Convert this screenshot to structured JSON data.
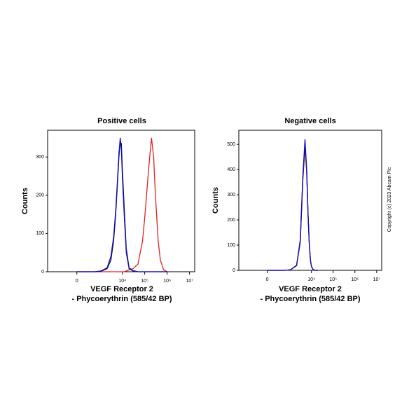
{
  "copyright": "Copyright (c) 2023 Abcam Plc",
  "chart_data": [
    {
      "type": "line",
      "title": "Positive cells",
      "y_label": "Counts",
      "x_label": [
        "VEGF Receptor 2",
        "- Phycoerythrin  (585/42 BP)"
      ],
      "xlim": [
        -1800,
        17000000
      ],
      "ylim": [
        0,
        370
      ],
      "xticks": [
        0,
        {
          "value": 10000,
          "label": "10⁴"
        },
        {
          "value": 100000,
          "label": "10⁵"
        },
        {
          "value": 1000000,
          "label": "10⁶"
        },
        {
          "value": 10000000,
          "label": "10⁷"
        }
      ],
      "yticks": [
        0,
        100,
        200,
        300
      ],
      "x": [
        0,
        500,
        1000,
        2000,
        3000,
        4000,
        5000,
        6000,
        7000,
        8000,
        9000,
        10000,
        12000,
        15000,
        20000,
        30000,
        50000,
        80000,
        100000,
        150000,
        200000,
        250000,
        300000,
        400000,
        500000,
        700000,
        1000000
      ],
      "series": [
        {
          "color": "#e02020",
          "values": [
            0,
            0,
            0,
            0,
            0,
            0,
            0,
            0,
            0,
            0,
            0,
            0,
            0,
            2,
            5,
            8,
            20,
            80,
            140,
            270,
            350,
            300,
            200,
            80,
            30,
            5,
            0
          ]
        },
        {
          "color": "#111111",
          "values": [
            0,
            0,
            1,
            8,
            30,
            80,
            150,
            230,
            300,
            340,
            335,
            270,
            170,
            60,
            10,
            3,
            0,
            0,
            0,
            0,
            0,
            0,
            0,
            0,
            0,
            0,
            0
          ]
        },
        {
          "color": "#1010c8",
          "values": [
            0,
            0,
            2,
            10,
            40,
            90,
            160,
            240,
            310,
            350,
            320,
            250,
            150,
            50,
            8,
            2,
            0,
            0,
            0,
            0,
            0,
            0,
            0,
            0,
            0,
            0,
            0
          ]
        }
      ]
    },
    {
      "type": "line",
      "title": "Negative cells",
      "y_label": "Counts",
      "x_label": [
        "VEGF Receptor 2",
        "- Phycoerythrin  (585/42 BP)"
      ],
      "xlim": [
        -1800,
        17000000
      ],
      "ylim": [
        0,
        556
      ],
      "xticks": [
        0,
        {
          "value": 10000,
          "label": "10⁴"
        },
        {
          "value": 100000,
          "label": "10⁵"
        },
        {
          "value": 1000000,
          "label": "10⁶"
        },
        {
          "value": 10000000,
          "label": "10⁷"
        }
      ],
      "yticks": [
        0,
        100,
        200,
        300,
        400,
        500
      ],
      "x": [
        0,
        500,
        1000,
        2000,
        3000,
        4000,
        5000,
        6000,
        7000,
        8000,
        9000,
        10000,
        12000,
        15000,
        20000
      ],
      "series": [
        {
          "color": "#e02020",
          "values": [
            0,
            0,
            2,
            18,
            110,
            360,
            490,
            390,
            215,
            100,
            40,
            15,
            3,
            0,
            0
          ]
        },
        {
          "color": "#111111",
          "values": [
            0,
            0,
            2,
            20,
            115,
            370,
            500,
            395,
            220,
            100,
            40,
            15,
            3,
            0,
            0
          ]
        },
        {
          "color": "#1010c8",
          "values": [
            0,
            0,
            2,
            20,
            120,
            380,
            520,
            400,
            220,
            100,
            40,
            15,
            3,
            0,
            0
          ]
        }
      ]
    }
  ]
}
